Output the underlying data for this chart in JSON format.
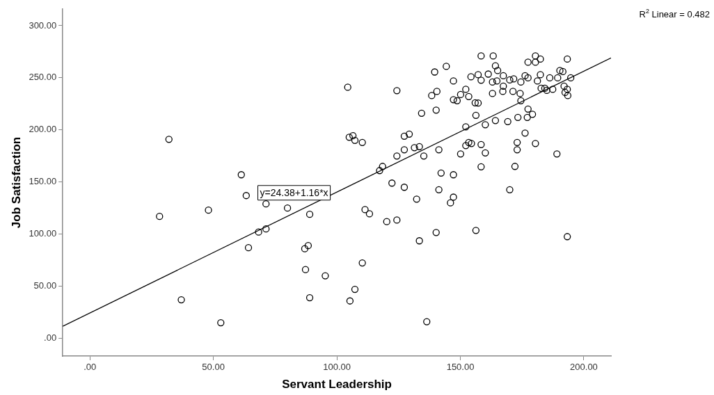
{
  "chart_data": {
    "type": "scatter",
    "xlabel": "Servant Leadership",
    "ylabel": "Job Satisfaction",
    "xlim": [
      -11,
      211
    ],
    "ylim": [
      -17,
      316
    ],
    "xticks": [
      {
        "value": 0,
        "label": ".00"
      },
      {
        "value": 50,
        "label": "50.00"
      },
      {
        "value": 100,
        "label": "100.00"
      },
      {
        "value": 150,
        "label": "150.00"
      },
      {
        "value": 200,
        "label": "200.00"
      }
    ],
    "yticks": [
      {
        "value": 0,
        "label": ".00"
      },
      {
        "value": 50,
        "label": "50.00"
      },
      {
        "value": 100,
        "label": "100.00"
      },
      {
        "value": 150,
        "label": "150.00"
      },
      {
        "value": 200,
        "label": "200.00"
      },
      {
        "value": 250,
        "label": "250.00"
      },
      {
        "value": 300,
        "label": "300.00"
      }
    ],
    "marker": "circle",
    "annotations": [
      "R$^{2}$ Linear = 0.482",
      "y=24.38+1.16*x"
    ],
    "series": [
      {
        "color": "#000000",
        "x": [
          32,
          28.2,
          61.3,
          63.3,
          71.3,
          48,
          80,
          89,
          68.3,
          71.3,
          64.2,
          88.4,
          87,
          87.3,
          95.3,
          37,
          89,
          53,
          104.4,
          124.3,
          139.6,
          144.3,
          158.4,
          163.3,
          147.2,
          180.4,
          182.4,
          177.4,
          180.4,
          193.3,
          164.2,
          165.1,
          161.3,
          157.2,
          154.3,
          158.4,
          163,
          164.8,
          167.4,
          167.4,
          170,
          171.6,
          174.5,
          176.2,
          177.4,
          182.4,
          181.2,
          186.2,
          189.4,
          190.3,
          191.5,
          194.7,
          192,
          193.3,
          192.4,
          193.5,
          182.7,
          184.2,
          185,
          187.4,
          138.4,
          140.5,
          147.2,
          148.7,
          150.1,
          152.2,
          153.4,
          156,
          157.2,
          163,
          167.2,
          171.3,
          174.2,
          174.5,
          134.3,
          140.2,
          156.3,
          177.4,
          179.2,
          173.3,
          177.1,
          152.2,
          160.1,
          164.2,
          169.2,
          176.2,
          105,
          106.5,
          107.3,
          110.3,
          127.3,
          129.3,
          127.3,
          131.4,
          133.4,
          124.3,
          135.2,
          141.3,
          150.1,
          152.2,
          153.4,
          154.5,
          158.4,
          160.1,
          173,
          173,
          180.4,
          189.1,
          118.5,
          117.3,
          158.4,
          172.1,
          142.2,
          147.2,
          122.3,
          127.3,
          141.3,
          170,
          132.3,
          147.2,
          146,
          111.4,
          113.2,
          120.2,
          124.3,
          140.2,
          156.3,
          193.3,
          133.4,
          110.3,
          107.3,
          105.3,
          136.4
        ],
        "values": [
          191,
          117,
          157,
          137,
          129,
          123,
          125,
          119,
          102,
          105,
          87,
          89,
          86,
          66,
          60,
          37,
          39,
          15,
          241,
          237.7,
          255.6,
          261,
          271,
          271,
          247,
          271,
          268,
          265,
          265,
          268,
          261.5,
          257,
          253.6,
          253,
          251,
          247.7,
          246,
          247,
          252,
          242,
          248,
          249,
          246,
          252,
          250,
          253,
          247,
          250,
          250,
          257,
          256,
          250,
          242,
          239,
          236,
          233,
          240,
          240,
          238,
          239,
          233,
          237,
          229,
          228,
          234,
          239,
          232,
          226,
          225.8,
          235,
          237,
          237,
          235,
          228,
          216,
          219,
          214,
          220,
          215,
          212,
          212,
          203,
          205,
          209,
          208,
          197,
          193,
          194.5,
          190,
          188,
          194,
          196,
          181,
          183,
          184,
          175,
          175,
          181,
          177,
          185,
          188,
          187,
          186,
          178,
          188,
          181,
          187,
          177,
          165,
          161,
          164.6,
          165,
          158.6,
          157,
          149,
          145,
          142.6,
          142.6,
          133.6,
          135.5,
          130,
          123.5,
          119.5,
          112,
          113.5,
          101.6,
          103.6,
          97.6,
          93.6,
          72.4,
          47,
          35.9,
          16
        ]
      },
      {
        "type": "line",
        "marker": "none",
        "color": "#000000",
        "x": [
          -11,
          211
        ],
        "values": [
          11.6,
          269.1
        ]
      }
    ]
  }
}
